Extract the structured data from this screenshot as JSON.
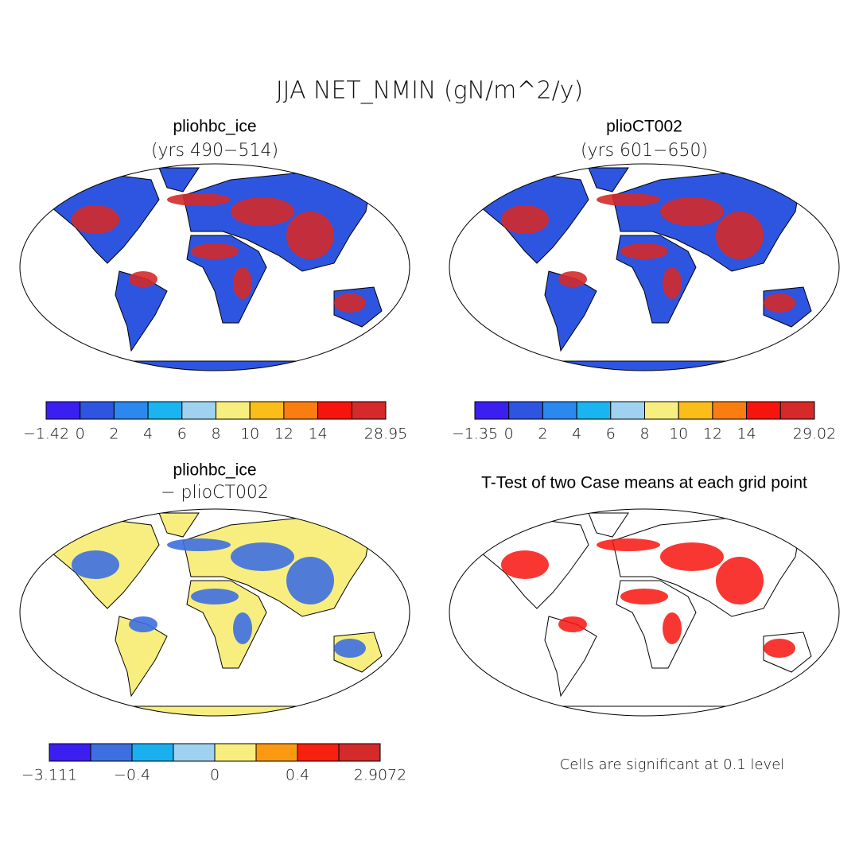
{
  "title": "JJA NET_NMIN (gN/m^2/y)",
  "panels": [
    {
      "title": "pliohbc_ice",
      "subtitle": "(yrs 490−514)",
      "colorbar": {
        "colors": [
          "#3b1ff0",
          "#2e55e0",
          "#2a88ee",
          "#1ab4f0",
          "#9fd2f0",
          "#f7ee80",
          "#fbbd1a",
          "#f97d10",
          "#f8140e",
          "#d42a2a"
        ],
        "labels": [
          "−1.42",
          "0",
          "2",
          "4",
          "6",
          "8",
          "10",
          "12",
          "14",
          null,
          "28.95"
        ]
      }
    },
    {
      "title": "plioCT002",
      "subtitle": "(yrs 601−650)",
      "colorbar": {
        "colors": [
          "#3b1ff0",
          "#2e55e0",
          "#2a88ee",
          "#1ab4f0",
          "#9fd2f0",
          "#f7ee80",
          "#fbbd1a",
          "#f97d10",
          "#f8140e",
          "#d42a2a"
        ],
        "labels": [
          "−1.35",
          "0",
          "2",
          "4",
          "6",
          "8",
          "10",
          "12",
          "14",
          null,
          "29.02"
        ]
      }
    },
    {
      "title": "pliohbc_ice",
      "subtitle": "− plioCT002",
      "colorbar": {
        "colors": [
          "#3b1ff0",
          "#3d6fe0",
          "#1ab0f0",
          "#9fd2f0",
          "#f8ee80",
          "#fb9a10",
          "#f8200e",
          "#d42a2a"
        ],
        "labels": [
          "−3.111",
          null,
          "−0.4",
          null,
          "0",
          null,
          "0.4",
          null,
          "2.9072"
        ]
      }
    },
    {
      "title": "T-Test of two Case means at each grid point",
      "note": "Cells are significant at 0.1 level"
    }
  ]
}
